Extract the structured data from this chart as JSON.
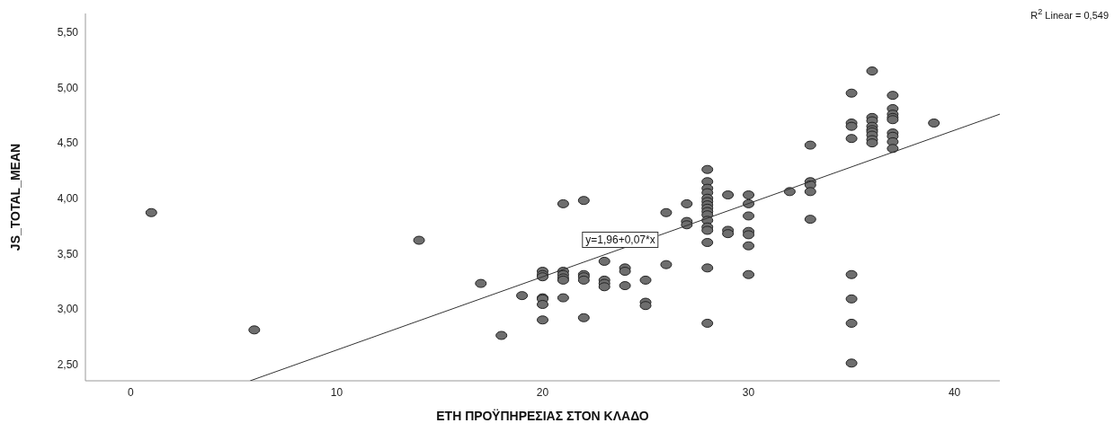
{
  "chart_data": {
    "type": "scatter",
    "xlabel": "ΕΤΗ ΠΡΟΫΠΗΡΕΣΙΑΣ ΣΤΟΝ ΚΛΑΔΟ",
    "ylabel": "JS_TOTAL_MEAN",
    "annotations": [
      "R$^{2}$ Linear = 0,549",
      "y=1,96+0,07*x"
    ],
    "xlim": [
      -2.2,
      42.2
    ],
    "xticks": [
      0,
      10,
      20,
      30,
      40
    ],
    "ylim": [
      2.35,
      5.67
    ],
    "yticks": [
      {
        "value": 2.5,
        "label": "2,50"
      },
      {
        "value": 3,
        "label": "3,00"
      },
      {
        "value": 3.5,
        "label": "3,50"
      },
      {
        "value": 4,
        "label": "4,00"
      },
      {
        "value": 4.5,
        "label": "4,50"
      },
      {
        "value": 5,
        "label": "5,00"
      },
      {
        "value": 5.5,
        "label": "5,50"
      }
    ],
    "grid": false,
    "legend": false,
    "series": [
      {
        "color": "#6e6e6e",
        "marker": "circle",
        "x": [
          1,
          6,
          14,
          17,
          18,
          19,
          20,
          20,
          20,
          20,
          20,
          20,
          20,
          21,
          21,
          21,
          21,
          21,
          21,
          22,
          22,
          22,
          22,
          22,
          23,
          23,
          23,
          23,
          24,
          24,
          24,
          25,
          25,
          25,
          26,
          26,
          27,
          27,
          27,
          28,
          28,
          28,
          28,
          28,
          28,
          28,
          28,
          28,
          28,
          28,
          28,
          28,
          28,
          28,
          28,
          29,
          29,
          29,
          30,
          30,
          30,
          30,
          30,
          30,
          30,
          32,
          33,
          33,
          33,
          33,
          33,
          35,
          35,
          35,
          35,
          35,
          35,
          35,
          35,
          36,
          36,
          36,
          36,
          36,
          36,
          36,
          36,
          36,
          37,
          37,
          37,
          37,
          37,
          37,
          37,
          37,
          37,
          39
        ],
        "values": [
          3.87,
          2.81,
          3.62,
          3.23,
          2.76,
          3.12,
          3.34,
          3.31,
          3.29,
          3.1,
          3.09,
          3.04,
          2.9,
          3.95,
          3.34,
          3.31,
          3.28,
          3.26,
          3.1,
          3.98,
          3.31,
          3.29,
          3.26,
          2.92,
          3.43,
          3.26,
          3.23,
          3.2,
          3.37,
          3.34,
          3.21,
          3.26,
          3.06,
          3.03,
          3.87,
          3.4,
          3.95,
          3.79,
          3.76,
          4.26,
          4.15,
          4.09,
          4.05,
          4,
          3.97,
          3.94,
          3.91,
          3.88,
          3.85,
          3.8,
          3.74,
          3.71,
          3.6,
          3.37,
          2.87,
          4.03,
          3.71,
          3.68,
          4.03,
          3.95,
          3.84,
          3.7,
          3.67,
          3.57,
          3.31,
          4.06,
          4.48,
          4.15,
          4.12,
          4.06,
          3.81,
          4.95,
          4.68,
          4.65,
          4.54,
          3.31,
          3.09,
          2.87,
          2.51,
          5.15,
          4.73,
          4.7,
          4.65,
          4.62,
          4.6,
          4.57,
          4.53,
          4.5,
          4.93,
          4.81,
          4.76,
          4.73,
          4.71,
          4.59,
          4.56,
          4.51,
          4.45,
          4.68
        ]
      },
      {
        "type": "line",
        "color": "#333333",
        "x": [
          5.8,
          42.2
        ],
        "values": [
          2.35,
          4.76
        ]
      }
    ]
  }
}
